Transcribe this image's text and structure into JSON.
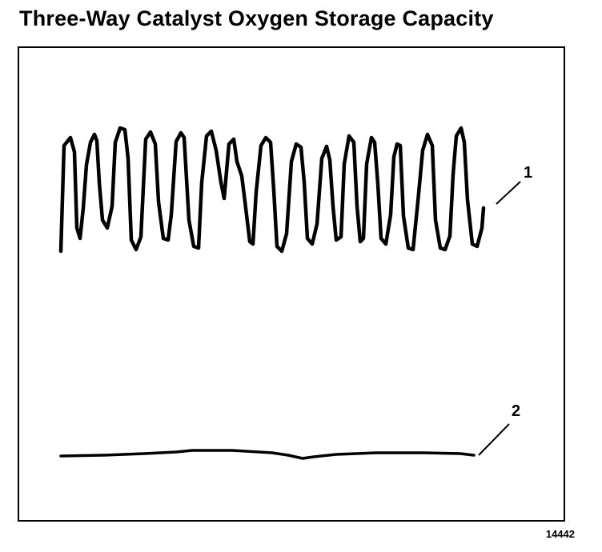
{
  "title": "Three-Way Catalyst Oxygen Storage Capacity",
  "callouts": [
    {
      "number": "1"
    },
    {
      "number": "2"
    }
  ],
  "figure_id": "14442",
  "colors": {
    "ink": "#000000",
    "background": "#ffffff"
  }
}
